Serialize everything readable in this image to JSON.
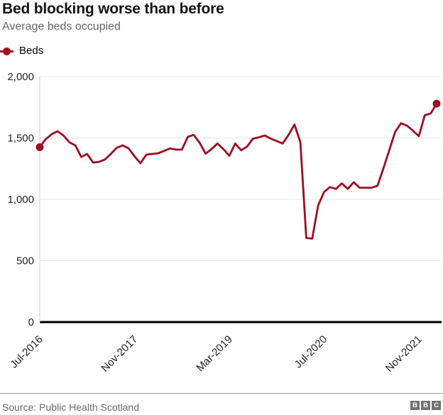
{
  "header": {
    "title": "Bed blocking worse than before",
    "subtitle": "Average beds occupied"
  },
  "legend": {
    "label": "Beds"
  },
  "footer": {
    "source": "Source: Public Health Scotland",
    "logo_letters": [
      "B",
      "B",
      "C"
    ]
  },
  "colors": {
    "series": "#9e0d22",
    "grid": "#e4e4e4",
    "spine": "#cfcfcf",
    "zero_axis": "#000000",
    "tick_text": "#222222",
    "title": "#141414",
    "subtitle": "#666666",
    "source": "#696969",
    "divider": "#999999",
    "logo_bg": "#717171"
  },
  "chart_data": {
    "type": "line",
    "title": "Bed blocking worse than before",
    "subtitle": "Average beds occupied",
    "xlabel": "",
    "ylabel": "",
    "ylim": [
      0,
      2000
    ],
    "y_ticks": [
      0,
      500,
      1000,
      1500,
      2000
    ],
    "y_tick_labels": [
      "0",
      "500",
      "1,000",
      "1,500",
      "2,000"
    ],
    "grid": true,
    "legend_position": "top-left",
    "x_tick_indices": [
      0,
      16,
      32,
      48,
      64
    ],
    "x_tick_labels": [
      "Jul-2016",
      "Nov-2017",
      "Mar-2019",
      "Jul-2020",
      "Nov-2021"
    ],
    "x": [
      "Jul-2016",
      "Aug-2016",
      "Sep-2016",
      "Oct-2016",
      "Nov-2016",
      "Dec-2016",
      "Jan-2017",
      "Feb-2017",
      "Mar-2017",
      "Apr-2017",
      "May-2017",
      "Jun-2017",
      "Jul-2017",
      "Aug-2017",
      "Sep-2017",
      "Oct-2017",
      "Nov-2017",
      "Dec-2017",
      "Jan-2018",
      "Feb-2018",
      "Mar-2018",
      "Apr-2018",
      "May-2018",
      "Jun-2018",
      "Jul-2018",
      "Aug-2018",
      "Sep-2018",
      "Oct-2018",
      "Nov-2018",
      "Dec-2018",
      "Jan-2019",
      "Feb-2019",
      "Mar-2019",
      "Apr-2019",
      "May-2019",
      "Jun-2019",
      "Jul-2019",
      "Aug-2019",
      "Sep-2019",
      "Oct-2019",
      "Nov-2019",
      "Dec-2019",
      "Jan-2020",
      "Feb-2020",
      "Mar-2020",
      "Apr-2020",
      "May-2020",
      "Jun-2020",
      "Jul-2020",
      "Aug-2020",
      "Sep-2020",
      "Oct-2020",
      "Nov-2020",
      "Dec-2020",
      "Jan-2021",
      "Feb-2021",
      "Mar-2021",
      "Apr-2021",
      "May-2021",
      "Jun-2021",
      "Jul-2021",
      "Aug-2021",
      "Sep-2021",
      "Oct-2021",
      "Nov-2021",
      "Dec-2021",
      "Jan-2022",
      "Feb-2022"
    ],
    "series": [
      {
        "name": "Beds",
        "color": "#9e0d22",
        "endpoint_markers": true,
        "values": [
          1425,
          1490,
          1530,
          1555,
          1520,
          1465,
          1440,
          1345,
          1370,
          1300,
          1305,
          1325,
          1370,
          1420,
          1440,
          1415,
          1350,
          1295,
          1365,
          1370,
          1375,
          1395,
          1415,
          1405,
          1405,
          1510,
          1525,
          1460,
          1372,
          1410,
          1455,
          1410,
          1355,
          1455,
          1400,
          1430,
          1495,
          1505,
          1520,
          1495,
          1475,
          1455,
          1525,
          1610,
          1465,
          685,
          680,
          950,
          1060,
          1100,
          1085,
          1130,
          1085,
          1140,
          1095,
          1095,
          1095,
          1110,
          1250,
          1400,
          1550,
          1620,
          1600,
          1560,
          1515,
          1685,
          1700,
          1780
        ]
      }
    ]
  }
}
